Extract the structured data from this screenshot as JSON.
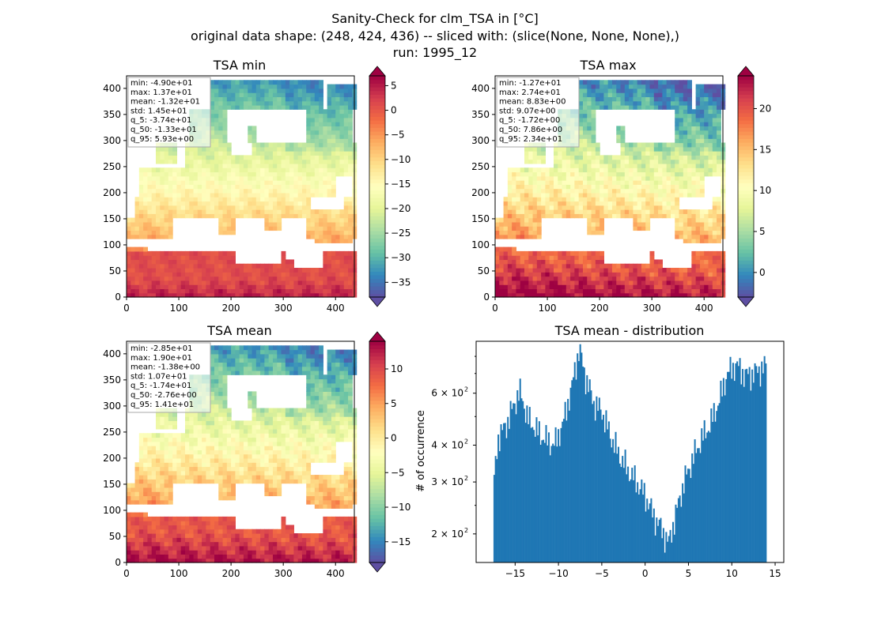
{
  "figure": {
    "title_lines": [
      "Sanity-Check for clm_TSA in [°C]",
      "original data shape: (248, 424, 436) -- sliced with: (slice(None, None, None),)",
      "run: 1995_12"
    ]
  },
  "colors": {
    "spectral_r": [
      "#5e4fa2",
      "#3288bd",
      "#66c2a5",
      "#abdda4",
      "#e6f598",
      "#ffffbf",
      "#fee08b",
      "#fdae61",
      "#f46d43",
      "#d53e4f",
      "#9e0142"
    ],
    "hist_bar": "#1f77b4",
    "ocean": "#ffffff"
  },
  "chart_data": [
    {
      "type": "heatmap",
      "title": "TSA min",
      "xlim": [
        0,
        436
      ],
      "ylim": [
        0,
        424
      ],
      "xticks": [
        0,
        100,
        200,
        300,
        400
      ],
      "yticks": [
        0,
        50,
        100,
        150,
        200,
        250,
        300,
        350,
        400
      ],
      "colorbar": {
        "min": -38,
        "max": 7,
        "ticks": [
          5,
          0,
          -5,
          -10,
          -15,
          -20,
          -25,
          -30,
          -35
        ],
        "extend": "both"
      },
      "stats": [
        "min: -4.90e+01",
        "max: 1.37e+01",
        "mean: -1.32e+01",
        "std: 1.45e+01",
        "q_5: -3.74e+01",
        "q_50: -1.33e+01",
        "q_95: 5.93e+00"
      ],
      "field": {
        "south": 5,
        "north": -33,
        "west_offset": 0,
        "north_east_cold": -8
      }
    },
    {
      "type": "heatmap",
      "title": "TSA max",
      "xlim": [
        0,
        436
      ],
      "ylim": [
        0,
        424
      ],
      "xticks": [
        0,
        100,
        200,
        300,
        400
      ],
      "yticks": [
        0,
        50,
        100,
        150,
        200,
        250,
        300,
        350,
        400
      ],
      "colorbar": {
        "min": -3,
        "max": 24,
        "ticks": [
          20,
          15,
          10,
          5,
          0
        ],
        "extend": "both"
      },
      "stats": [
        "min: -1.27e+01",
        "max: 2.74e+01",
        "mean: 8.83e+00",
        "std: 9.07e+00",
        "q_5: -1.72e+00",
        "q_50: 7.86e+00",
        "q_95: 2.34e+01"
      ],
      "field": {
        "south": 23,
        "north": -2,
        "west_offset": 2,
        "north_east_cold": -6
      }
    },
    {
      "type": "heatmap",
      "title": "TSA mean",
      "xlim": [
        0,
        436
      ],
      "ylim": [
        0,
        424
      ],
      "xticks": [
        0,
        100,
        200,
        300,
        400
      ],
      "yticks": [
        0,
        50,
        100,
        150,
        200,
        250,
        300,
        350,
        400
      ],
      "colorbar": {
        "min": -18,
        "max": 14,
        "ticks": [
          10,
          5,
          0,
          -5,
          -10,
          -15
        ],
        "extend": "both"
      },
      "stats": [
        "min: -2.85e+01",
        "max: 1.90e+01",
        "mean: -1.38e+00",
        "std: 1.07e+01",
        "q_5: -1.74e+01",
        "q_50: -2.76e+00",
        "q_95: 1.41e+01"
      ],
      "field": {
        "south": 13,
        "north": -15,
        "west_offset": 1,
        "north_east_cold": -5
      }
    },
    {
      "type": "bar",
      "title": "TSA mean - distribution",
      "ylabel": "# of occurrence",
      "xlabel": "",
      "yscale": "log",
      "xlim": [
        -19.5,
        16
      ],
      "ylim": [
        160,
        900
      ],
      "xticks": [
        -15,
        -10,
        -5,
        0,
        5,
        10,
        15
      ],
      "yticks": [
        {
          "value": 200,
          "base": "2 × 10",
          "exp": "2"
        },
        {
          "value": 300,
          "base": "3 × 10",
          "exp": "2"
        },
        {
          "value": 400,
          "base": "4 × 10",
          "exp": "2"
        },
        {
          "value": 600,
          "base": "6 × 10",
          "exp": "2"
        }
      ],
      "bin_start": -17.5,
      "bin_end": 14.0,
      "profile": [
        [
          -17.5,
          280
        ],
        [
          -17.0,
          420
        ],
        [
          -16.0,
          470
        ],
        [
          -15.0,
          560
        ],
        [
          -14.5,
          610
        ],
        [
          -13.5,
          490
        ],
        [
          -12.0,
          430
        ],
        [
          -10.5,
          400
        ],
        [
          -9.5,
          470
        ],
        [
          -8.5,
          620
        ],
        [
          -7.6,
          850
        ],
        [
          -7.0,
          700
        ],
        [
          -6.0,
          560
        ],
        [
          -5.0,
          520
        ],
        [
          -4.0,
          430
        ],
        [
          -3.0,
          370
        ],
        [
          -2.0,
          330
        ],
        [
          -1.0,
          300
        ],
        [
          0.0,
          270
        ],
        [
          1.0,
          230
        ],
        [
          2.0,
          205
        ],
        [
          2.7,
          185
        ],
        [
          3.5,
          230
        ],
        [
          4.5,
          300
        ],
        [
          5.5,
          360
        ],
        [
          6.5,
          420
        ],
        [
          7.5,
          470
        ],
        [
          8.5,
          560
        ],
        [
          9.5,
          700
        ],
        [
          10.5,
          750
        ],
        [
          11.5,
          690
        ],
        [
          12.5,
          700
        ],
        [
          13.5,
          730
        ],
        [
          14.0,
          740
        ]
      ]
    }
  ]
}
